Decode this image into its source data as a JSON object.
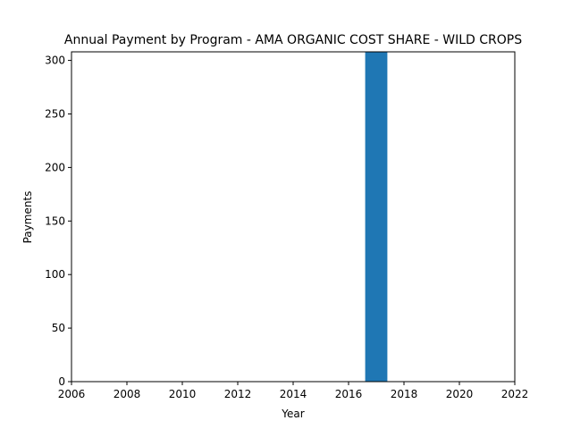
{
  "chart_data": {
    "type": "bar",
    "title": "Annual Payment by Program - AMA ORGANIC COST SHARE - WILD CROPS",
    "xlabel": "Year",
    "ylabel": "Payments",
    "x": [
      2017
    ],
    "values": [
      308
    ],
    "xlim": [
      2006,
      2022
    ],
    "ylim": [
      0,
      308
    ],
    "xticks": [
      "2006",
      "2008",
      "2010",
      "2012",
      "2014",
      "2016",
      "2018",
      "2020",
      "2022"
    ],
    "yticks": [
      "0",
      "50",
      "100",
      "150",
      "200",
      "250",
      "300"
    ],
    "bar_width_years": 0.8,
    "bar_color": "#1f77b4",
    "grid": false,
    "legend": false
  }
}
